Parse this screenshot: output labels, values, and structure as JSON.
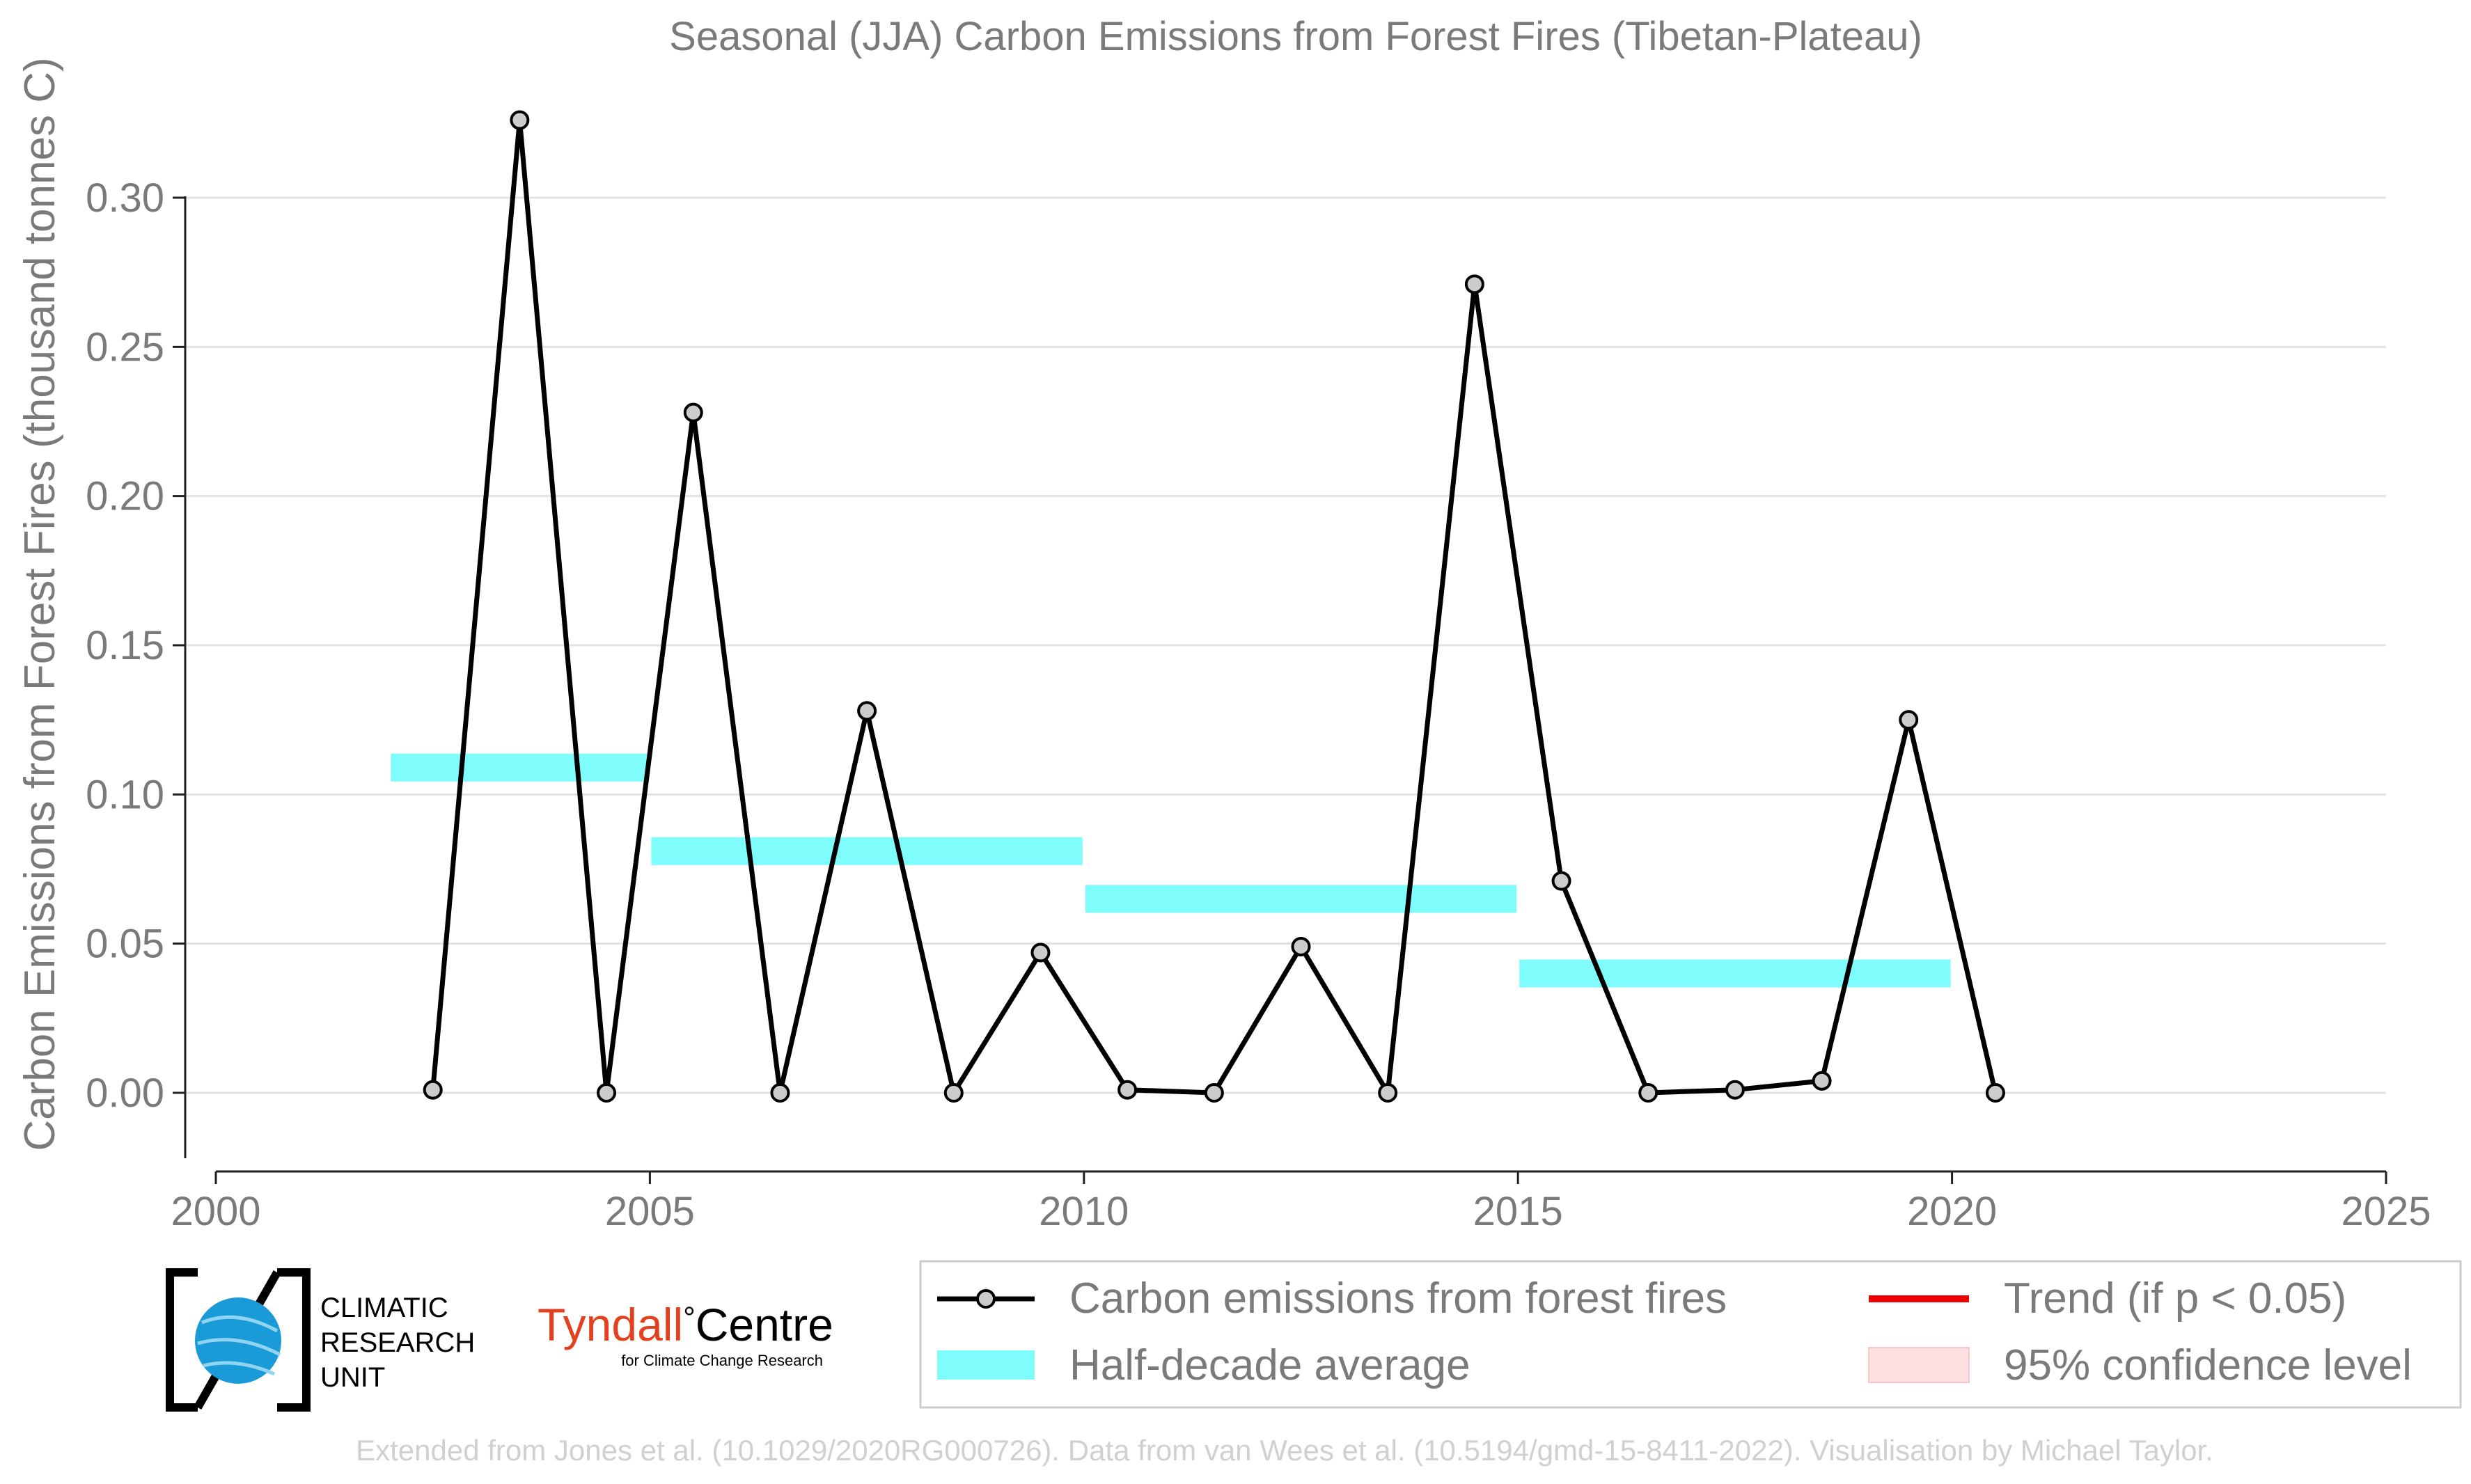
{
  "chart_data": {
    "type": "line",
    "title": "Seasonal (JJA) Carbon Emissions from Forest Fires (Tibetan-Plateau)",
    "ylabel": "Carbon Emissions from Forest Fires (thousand tonnes C)",
    "xlabel": "",
    "xlim": [
      2000,
      2025
    ],
    "ylim": [
      -0.025,
      0.33
    ],
    "x_ticks": [
      2000,
      2005,
      2010,
      2015,
      2020,
      2025
    ],
    "x_tick_labels": [
      "2000",
      "2005",
      "2010",
      "2015",
      "2020",
      "2025"
    ],
    "y_ticks": [
      0.0,
      0.05,
      0.1,
      0.15,
      0.2,
      0.25,
      0.3
    ],
    "y_tick_labels": [
      "0.00",
      "0.05",
      "0.10",
      "0.15",
      "0.20",
      "0.25",
      "0.30"
    ],
    "grid": "horizontal",
    "series": [
      {
        "name": "Carbon emissions from forest fires",
        "color": "#000000",
        "marker_fill": "#cccccc",
        "x": [
          2002.5,
          2003.5,
          2004.5,
          2005.5,
          2006.5,
          2007.5,
          2008.5,
          2009.5,
          2010.5,
          2011.5,
          2012.5,
          2013.5,
          2014.5,
          2015.5,
          2016.5,
          2017.5,
          2018.5,
          2019.5,
          2020.5
        ],
        "y": [
          0.001,
          0.326,
          0.0,
          0.228,
          0.0,
          0.128,
          0.0,
          0.047,
          0.001,
          0.0,
          0.049,
          0.0,
          0.271,
          0.071,
          0.0,
          0.001,
          0.004,
          0.125,
          0.0
        ]
      }
    ],
    "half_decade_average": {
      "name": "Half-decade average",
      "color": "#7ffcfc",
      "segments": [
        {
          "x0": 2002,
          "x1": 2005,
          "y": 0.109
        },
        {
          "x0": 2005,
          "x1": 2010,
          "y": 0.081
        },
        {
          "x0": 2010,
          "x1": 2015,
          "y": 0.065
        },
        {
          "x0": 2015,
          "x1": 2020,
          "y": 0.04
        }
      ]
    },
    "legend": {
      "placement": "bottom-right",
      "entries": [
        {
          "label": "Carbon emissions from forest fires",
          "kind": "line-marker",
          "color": "#000000"
        },
        {
          "label": "Half-decade average",
          "kind": "band",
          "color": "#7ffcfc"
        },
        {
          "label": "Trend (if p < 0.05)",
          "kind": "line",
          "color": "#ee0000"
        },
        {
          "label": "95% confidence level",
          "kind": "box",
          "color": "#fde0e2"
        }
      ]
    }
  },
  "logos": {
    "cru": {
      "lines": [
        "CLIMATIC",
        "RESEARCH",
        "UNIT"
      ],
      "globe_color": "#1a9ad6"
    },
    "tyndall": {
      "name_part1": "Tyndall",
      "degree": "°",
      "name_part2": "Centre",
      "subtitle": "for Climate Change Research",
      "name_color": "#e2401f"
    }
  },
  "footer": "Extended from Jones et al. (10.1029/2020RG000726). Data from van Wees et al. (10.5194/gmd-15-8411-2022). Visualisation by Michael Taylor."
}
